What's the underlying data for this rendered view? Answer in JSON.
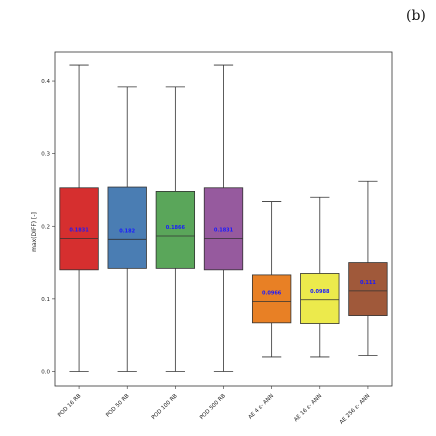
{
  "panel_label": "(b)",
  "chart_data": {
    "type": "box",
    "title": "",
    "xlabel": "",
    "ylabel": "max(DIFF) [-]",
    "ylim": [
      -0.02,
      0.44
    ],
    "yticks": [
      0.0,
      0.1,
      0.2,
      0.3,
      0.4
    ],
    "ytick_labels": [
      "0.0",
      "0.1",
      "0.2",
      "0.3",
      "0.4"
    ],
    "grid": false,
    "boxes": [
      {
        "category": "POD 16 RB",
        "whisker_low": 0.0,
        "q1": 0.14,
        "median": 0.1831,
        "q3": 0.253,
        "whisker_high": 0.422,
        "median_label": "0.1831",
        "color": "#d62f2f"
      },
      {
        "category": "POD 50 RB",
        "whisker_low": 0.0,
        "q1": 0.142,
        "median": 0.182,
        "q3": 0.254,
        "whisker_high": 0.392,
        "median_label": "0.182",
        "color": "#4a7db3"
      },
      {
        "category": "POD 100 RB",
        "whisker_low": 0.0,
        "q1": 0.142,
        "median": 0.1866,
        "q3": 0.248,
        "whisker_high": 0.392,
        "median_label": "0.1866",
        "color": "#5aa65a"
      },
      {
        "category": "POD 500 RB",
        "whisker_low": 0.0,
        "q1": 0.14,
        "median": 0.1831,
        "q3": 0.253,
        "whisker_high": 0.422,
        "median_label": "0.1831",
        "color": "#965a9e"
      },
      {
        "category": "AE 4 ε- ANN",
        "whisker_low": 0.02,
        "q1": 0.067,
        "median": 0.0966,
        "q3": 0.133,
        "whisker_high": 0.234,
        "median_label": "0.0966",
        "color": "#e88025"
      },
      {
        "category": "AE 16 ε- ANN",
        "whisker_low": 0.02,
        "q1": 0.066,
        "median": 0.0988,
        "q3": 0.135,
        "whisker_high": 0.24,
        "median_label": "0.0988",
        "color": "#ecea4c"
      },
      {
        "category": "AE 256 ε- ANN",
        "whisker_low": 0.022,
        "q1": 0.077,
        "median": 0.111,
        "q3": 0.15,
        "whisker_high": 0.262,
        "median_label": "0.111",
        "color": "#a0593a"
      }
    ]
  }
}
